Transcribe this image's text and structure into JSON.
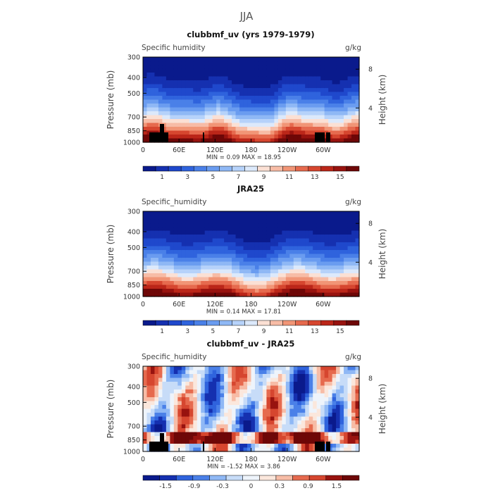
{
  "page_title": "JJA",
  "chart_data": [
    {
      "type": "heatmap",
      "title": "clubbmf_uv (yrs 1979-1979)",
      "left_label": "Specific humidity",
      "units": "g/kg",
      "ylabel": "Pressure (mb)",
      "ylabel_right": "Height (km)",
      "x_ticks": [
        "0",
        "60E",
        "120E",
        "180",
        "120W",
        "60W"
      ],
      "y_ticks": [
        "300",
        "400",
        "500",
        "700",
        "850",
        "1000"
      ],
      "y2_ticks": [
        "8",
        "4"
      ],
      "stats": "MIN =    0.09   MAX =   18.95",
      "colorbar_labels": [
        "1",
        "3",
        "5",
        "7",
        "9",
        "11",
        "13",
        "15"
      ],
      "colorbar_colors": [
        "#0a1a8c",
        "#1530b0",
        "#1f48cc",
        "#2f63dd",
        "#4a80e8",
        "#6a9cf0",
        "#8fb8f5",
        "#b6d2fa",
        "#dce9fb",
        "#fbe0d4",
        "#f7bca6",
        "#f19576",
        "#e66a4e",
        "#d6462f",
        "#bb2619",
        "#98130f",
        "#6e0707"
      ]
    },
    {
      "type": "heatmap",
      "title": "JRA25",
      "left_label": "Specific_humidity",
      "units": "g/kg",
      "ylabel": "Pressure (mb)",
      "ylabel_right": "Height (km)",
      "x_ticks": [
        "0",
        "60E",
        "120E",
        "180",
        "120W",
        "60W"
      ],
      "y_ticks": [
        "300",
        "400",
        "500",
        "700",
        "850",
        "1000"
      ],
      "y2_ticks": [
        "8",
        "4"
      ],
      "stats": "MIN =    0.14   MAX =   17.81",
      "colorbar_labels": [
        "1",
        "3",
        "5",
        "7",
        "9",
        "11",
        "13",
        "15"
      ],
      "colorbar_colors": [
        "#0a1a8c",
        "#1530b0",
        "#1f48cc",
        "#2f63dd",
        "#4a80e8",
        "#6a9cf0",
        "#8fb8f5",
        "#b6d2fa",
        "#dce9fb",
        "#fbe0d4",
        "#f7bca6",
        "#f19576",
        "#e66a4e",
        "#d6462f",
        "#bb2619",
        "#98130f",
        "#6e0707"
      ]
    },
    {
      "type": "heatmap",
      "title": "clubbmf_uv - JRA25",
      "left_label": "Specific_humidity",
      "units": "g/kg",
      "ylabel": "Pressure (mb)",
      "ylabel_right": "Height (km)",
      "x_ticks": [
        "0",
        "60E",
        "120E",
        "180",
        "120W",
        "60W"
      ],
      "y_ticks": [
        "300",
        "400",
        "500",
        "700",
        "850",
        "1000"
      ],
      "y2_ticks": [
        "8",
        "4"
      ],
      "stats": "MIN =   -1.52   MAX =    3.86",
      "colorbar_labels": [
        "-1.5",
        "-0.9",
        "-0.3",
        "0",
        "0.3",
        "0.9",
        "1.5"
      ],
      "colorbar_colors": [
        "#0a1a8c",
        "#1530b0",
        "#2f63dd",
        "#4a80e8",
        "#8fb8f5",
        "#c7dcf8",
        "#eef4fb",
        "#fbe7dc",
        "#f7bca6",
        "#e66a4e",
        "#d6462f",
        "#98130f",
        "#6e0707"
      ]
    }
  ]
}
